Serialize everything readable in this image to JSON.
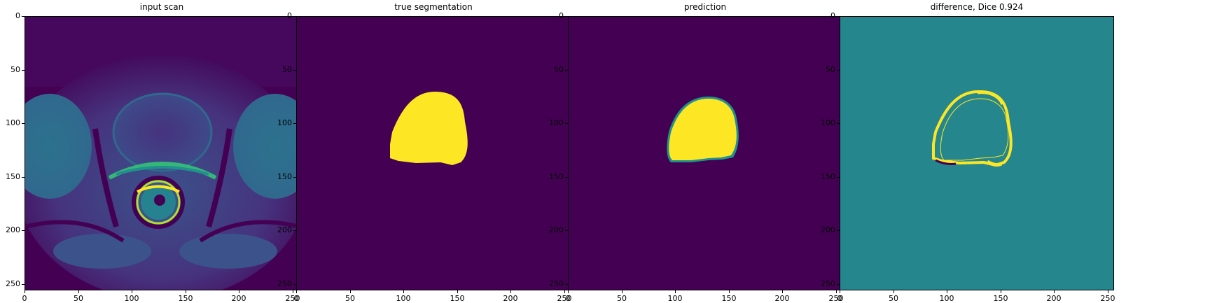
{
  "panels": [
    {
      "title": "input scan"
    },
    {
      "title": "true segmentation"
    },
    {
      "title": "prediction"
    },
    {
      "title": "difference, Dice 0.924"
    }
  ],
  "axes": {
    "x_ticks": [
      "0",
      "50",
      "100",
      "150",
      "200",
      "250"
    ],
    "y_ticks": [
      "0",
      "50",
      "100",
      "150",
      "200",
      "250"
    ],
    "range": [
      0,
      256
    ]
  },
  "colors": {
    "viridis_dark": "#440154",
    "viridis_mid": "#21918c",
    "viridis_yellow": "#fde725",
    "teal_bg": "#25868e",
    "tissue_blue": "#3b528b",
    "tissue_green": "#35b779"
  }
}
